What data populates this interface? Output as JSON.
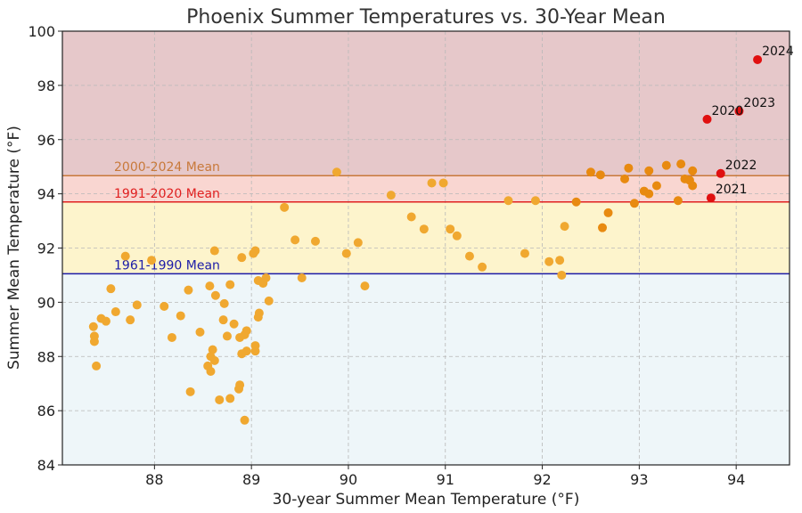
{
  "chart_data": {
    "type": "scatter",
    "title": "Phoenix Summer Temperatures vs. 30-Year Mean",
    "xlabel": "30-year Summer Mean Temperature (°F)",
    "ylabel": "Summer Mean Temperature (°F)",
    "xlim": [
      87.05,
      94.55
    ],
    "ylim": [
      84,
      100
    ],
    "xticks": [
      88,
      89,
      90,
      91,
      92,
      93,
      94
    ],
    "yticks": [
      84,
      86,
      88,
      90,
      92,
      94,
      96,
      98,
      100
    ],
    "grid": true,
    "background_bands": [
      {
        "from": 84,
        "to": 91.05,
        "color": "#eef6f9"
      },
      {
        "from": 91.05,
        "to": 93.7,
        "color": "#fdf4cc"
      },
      {
        "from": 93.7,
        "to": 94.67,
        "color": "#f9d6d1"
      },
      {
        "from": 94.67,
        "to": 100,
        "color": "#e6c8ca"
      }
    ],
    "reference_lines": [
      {
        "label": "2000-2024 Mean",
        "y": 94.67,
        "color": "#c8793a"
      },
      {
        "label": "1991-2020 Mean",
        "y": 93.7,
        "color": "#e02020"
      },
      {
        "label": "1961-1990 Mean",
        "y": 91.05,
        "color": "#1c1ca8"
      }
    ],
    "series": [
      {
        "color": "#f0a830",
        "points": [
          [
            87.37,
            89.1
          ],
          [
            87.38,
            88.75
          ],
          [
            87.38,
            88.55
          ],
          [
            87.4,
            87.65
          ],
          [
            87.45,
            89.4
          ],
          [
            87.5,
            89.3
          ],
          [
            87.55,
            90.5
          ],
          [
            87.6,
            89.65
          ],
          [
            87.7,
            91.7
          ],
          [
            87.75,
            89.35
          ],
          [
            87.82,
            89.9
          ],
          [
            87.97,
            91.55
          ],
          [
            88.1,
            89.85
          ],
          [
            88.18,
            88.7
          ],
          [
            88.27,
            89.5
          ],
          [
            88.35,
            90.45
          ],
          [
            88.37,
            86.7
          ],
          [
            88.47,
            88.9
          ],
          [
            88.55,
            87.65
          ],
          [
            88.57,
            90.6
          ],
          [
            88.58,
            87.45
          ],
          [
            88.58,
            88.0
          ],
          [
            88.6,
            88.25
          ],
          [
            88.62,
            91.9
          ],
          [
            88.62,
            87.85
          ],
          [
            88.63,
            90.25
          ],
          [
            88.67,
            86.4
          ],
          [
            88.71,
            89.35
          ],
          [
            88.72,
            89.95
          ],
          [
            88.75,
            88.75
          ],
          [
            88.78,
            86.45
          ],
          [
            88.78,
            90.65
          ],
          [
            88.82,
            89.2
          ],
          [
            88.87,
            86.8
          ],
          [
            88.88,
            86.95
          ],
          [
            88.88,
            88.7
          ],
          [
            88.9,
            91.65
          ],
          [
            88.9,
            88.1
          ],
          [
            88.93,
            88.8
          ],
          [
            88.93,
            85.65
          ],
          [
            88.95,
            88.95
          ],
          [
            88.95,
            88.2
          ],
          [
            89.02,
            91.8
          ],
          [
            89.04,
            91.9
          ],
          [
            89.04,
            88.2
          ],
          [
            89.04,
            88.4
          ],
          [
            89.07,
            89.45
          ],
          [
            89.07,
            90.8
          ],
          [
            89.08,
            89.6
          ],
          [
            89.12,
            90.7
          ],
          [
            89.15,
            90.9
          ],
          [
            89.18,
            90.05
          ],
          [
            89.34,
            93.5
          ],
          [
            89.45,
            92.3
          ],
          [
            89.52,
            90.9
          ],
          [
            89.66,
            92.25
          ],
          [
            89.88,
            94.8
          ],
          [
            89.98,
            91.8
          ],
          [
            90.1,
            92.2
          ],
          [
            90.17,
            90.6
          ],
          [
            90.44,
            93.95
          ],
          [
            90.65,
            93.15
          ],
          [
            90.78,
            92.7
          ],
          [
            90.86,
            94.4
          ],
          [
            90.98,
            94.4
          ],
          [
            91.05,
            92.7
          ],
          [
            91.12,
            92.45
          ],
          [
            91.25,
            91.7
          ],
          [
            91.38,
            91.3
          ],
          [
            91.65,
            93.75
          ],
          [
            91.82,
            91.8
          ],
          [
            91.93,
            93.75
          ],
          [
            92.07,
            91.5
          ],
          [
            92.18,
            91.55
          ],
          [
            92.2,
            91.0
          ],
          [
            92.23,
            92.8
          ]
        ]
      },
      {
        "color": "#e88a10",
        "points": [
          [
            92.35,
            93.7
          ],
          [
            92.5,
            94.8
          ],
          [
            92.6,
            94.7
          ],
          [
            92.62,
            92.75
          ],
          [
            92.68,
            93.3
          ],
          [
            92.85,
            94.55
          ],
          [
            92.89,
            94.95
          ],
          [
            92.95,
            93.65
          ],
          [
            93.05,
            94.1
          ],
          [
            93.1,
            94.85
          ],
          [
            93.1,
            94.0
          ],
          [
            93.18,
            94.3
          ],
          [
            93.28,
            95.05
          ],
          [
            93.4,
            93.75
          ],
          [
            93.43,
            95.1
          ],
          [
            93.47,
            94.55
          ],
          [
            93.52,
            94.5
          ],
          [
            93.55,
            94.85
          ],
          [
            93.55,
            94.3
          ]
        ]
      },
      {
        "color": "#e01010",
        "points": [
          [
            93.7,
            96.75
          ],
          [
            93.74,
            93.85
          ],
          [
            93.84,
            94.75
          ],
          [
            94.03,
            97.05
          ],
          [
            94.22,
            98.95
          ]
        ],
        "labels": [
          "2020",
          "2021",
          "2022",
          "2023",
          "2024"
        ]
      }
    ]
  }
}
